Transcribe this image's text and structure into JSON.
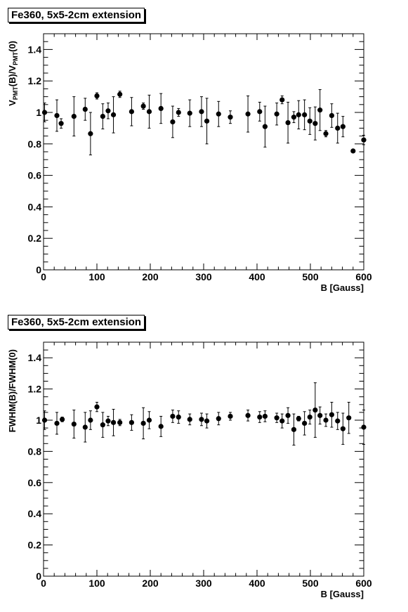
{
  "chart_data": [
    {
      "type": "scatter",
      "title": "Fe360, 5x5-2cm extension",
      "xlabel": "B  [Gauss]",
      "ylabel_main": "V",
      "ylabel_parts": [
        "V",
        "PMT",
        "(B)/V",
        "PMT",
        "(0)"
      ],
      "xlim": [
        0,
        600
      ],
      "ylim": [
        0,
        1.5
      ],
      "xticks": [
        "0",
        "100",
        "200",
        "300",
        "400",
        "500",
        "600"
      ],
      "yticks": [
        "0",
        "0.2",
        "0.4",
        "0.6",
        "0.8",
        "1",
        "1.2",
        "1.4"
      ],
      "marker_color": "#000000",
      "points": [
        {
          "x": 2,
          "y": 1.0,
          "err": 0.06
        },
        {
          "x": 25,
          "y": 0.98,
          "err": 0.1
        },
        {
          "x": 33,
          "y": 0.93,
          "err": 0.03
        },
        {
          "x": 57,
          "y": 0.975,
          "err": 0.125
        },
        {
          "x": 78,
          "y": 1.02,
          "err": 0.07
        },
        {
          "x": 88,
          "y": 0.865,
          "err": 0.135
        },
        {
          "x": 100,
          "y": 1.105,
          "err": 0.02
        },
        {
          "x": 111,
          "y": 0.975,
          "err": 0.08
        },
        {
          "x": 121,
          "y": 1.01,
          "err": 0.05
        },
        {
          "x": 131,
          "y": 0.985,
          "err": 0.115
        },
        {
          "x": 143,
          "y": 1.115,
          "err": 0.02
        },
        {
          "x": 165,
          "y": 1.005,
          "err": 0.09
        },
        {
          "x": 187,
          "y": 1.04,
          "err": 0.02
        },
        {
          "x": 198,
          "y": 1.005,
          "err": 0.105
        },
        {
          "x": 220,
          "y": 1.025,
          "err": 0.095
        },
        {
          "x": 242,
          "y": 0.94,
          "err": 0.1
        },
        {
          "x": 253,
          "y": 1.0,
          "err": 0.025
        },
        {
          "x": 274,
          "y": 0.995,
          "err": 0.085
        },
        {
          "x": 296,
          "y": 1.005,
          "err": 0.095
        },
        {
          "x": 306,
          "y": 0.945,
          "err": 0.145
        },
        {
          "x": 328,
          "y": 0.99,
          "err": 0.08
        },
        {
          "x": 350,
          "y": 0.97,
          "err": 0.04
        },
        {
          "x": 383,
          "y": 0.99,
          "err": 0.115
        },
        {
          "x": 405,
          "y": 1.005,
          "err": 0.06
        },
        {
          "x": 415,
          "y": 0.91,
          "err": 0.13
        },
        {
          "x": 437,
          "y": 0.99,
          "err": 0.07
        },
        {
          "x": 447,
          "y": 1.08,
          "err": 0.025
        },
        {
          "x": 458,
          "y": 0.935,
          "err": 0.13
        },
        {
          "x": 469,
          "y": 0.97,
          "err": 0.035
        },
        {
          "x": 478,
          "y": 0.985,
          "err": 0.09
        },
        {
          "x": 489,
          "y": 0.985,
          "err": 0.095
        },
        {
          "x": 499,
          "y": 0.945,
          "err": 0.085
        },
        {
          "x": 509,
          "y": 0.93,
          "err": 0.105
        },
        {
          "x": 518,
          "y": 1.015,
          "err": 0.13
        },
        {
          "x": 529,
          "y": 0.865,
          "err": 0.02
        },
        {
          "x": 540,
          "y": 0.98,
          "err": 0.075
        },
        {
          "x": 551,
          "y": 0.9,
          "err": 0.095
        },
        {
          "x": 561,
          "y": 0.91,
          "err": 0.065
        },
        {
          "x": 580,
          "y": 0.755,
          "err": 0.01
        },
        {
          "x": 600,
          "y": 0.825,
          "err": 0.03
        }
      ]
    },
    {
      "type": "scatter",
      "title": "Fe360, 5x5-2cm extension",
      "xlabel": "B [Gauss]",
      "ylabel": "FWHM(B)/FWHM(0)",
      "xlim": [
        0,
        600
      ],
      "ylim": [
        0,
        1.5
      ],
      "xticks": [
        "0",
        "100",
        "200",
        "300",
        "400",
        "500",
        "600"
      ],
      "yticks": [
        "0",
        "0.2",
        "0.4",
        "0.6",
        "0.8",
        "1",
        "1.2",
        "1.4"
      ],
      "marker_color": "#000000",
      "points": [
        {
          "x": 2,
          "y": 1.0,
          "err": 0.06
        },
        {
          "x": 25,
          "y": 0.98,
          "err": 0.07
        },
        {
          "x": 35,
          "y": 1.005,
          "err": 0.015
        },
        {
          "x": 57,
          "y": 0.975,
          "err": 0.09
        },
        {
          "x": 78,
          "y": 0.955,
          "err": 0.095
        },
        {
          "x": 88,
          "y": 1.0,
          "err": 0.06
        },
        {
          "x": 100,
          "y": 1.085,
          "err": 0.03
        },
        {
          "x": 111,
          "y": 0.97,
          "err": 0.08
        },
        {
          "x": 121,
          "y": 0.995,
          "err": 0.03
        },
        {
          "x": 131,
          "y": 0.985,
          "err": 0.085
        },
        {
          "x": 143,
          "y": 0.985,
          "err": 0.02
        },
        {
          "x": 165,
          "y": 0.985,
          "err": 0.05
        },
        {
          "x": 187,
          "y": 0.98,
          "err": 0.1
        },
        {
          "x": 198,
          "y": 1.0,
          "err": 0.055
        },
        {
          "x": 220,
          "y": 0.96,
          "err": 0.065
        },
        {
          "x": 242,
          "y": 1.025,
          "err": 0.04
        },
        {
          "x": 253,
          "y": 1.02,
          "err": 0.04
        },
        {
          "x": 274,
          "y": 1.005,
          "err": 0.035
        },
        {
          "x": 296,
          "y": 1.005,
          "err": 0.04
        },
        {
          "x": 306,
          "y": 0.995,
          "err": 0.045
        },
        {
          "x": 328,
          "y": 1.01,
          "err": 0.04
        },
        {
          "x": 350,
          "y": 1.025,
          "err": 0.025
        },
        {
          "x": 383,
          "y": 1.03,
          "err": 0.035
        },
        {
          "x": 405,
          "y": 1.02,
          "err": 0.035
        },
        {
          "x": 415,
          "y": 1.025,
          "err": 0.035
        },
        {
          "x": 437,
          "y": 1.015,
          "err": 0.03
        },
        {
          "x": 447,
          "y": 0.995,
          "err": 0.045
        },
        {
          "x": 458,
          "y": 1.03,
          "err": 0.05
        },
        {
          "x": 469,
          "y": 0.94,
          "err": 0.1
        },
        {
          "x": 478,
          "y": 1.01,
          "err": 0.015
        },
        {
          "x": 489,
          "y": 0.98,
          "err": 0.075
        },
        {
          "x": 499,
          "y": 1.02,
          "err": 0.045
        },
        {
          "x": 509,
          "y": 1.065,
          "err": 0.175
        },
        {
          "x": 518,
          "y": 1.03,
          "err": 0.055
        },
        {
          "x": 529,
          "y": 1.0,
          "err": 0.04
        },
        {
          "x": 540,
          "y": 1.035,
          "err": 0.08
        },
        {
          "x": 551,
          "y": 0.995,
          "err": 0.055
        },
        {
          "x": 561,
          "y": 0.945,
          "err": 0.1
        },
        {
          "x": 572,
          "y": 1.015,
          "err": 0.1
        },
        {
          "x": 600,
          "y": 0.955,
          "err": 0.11
        }
      ]
    }
  ]
}
